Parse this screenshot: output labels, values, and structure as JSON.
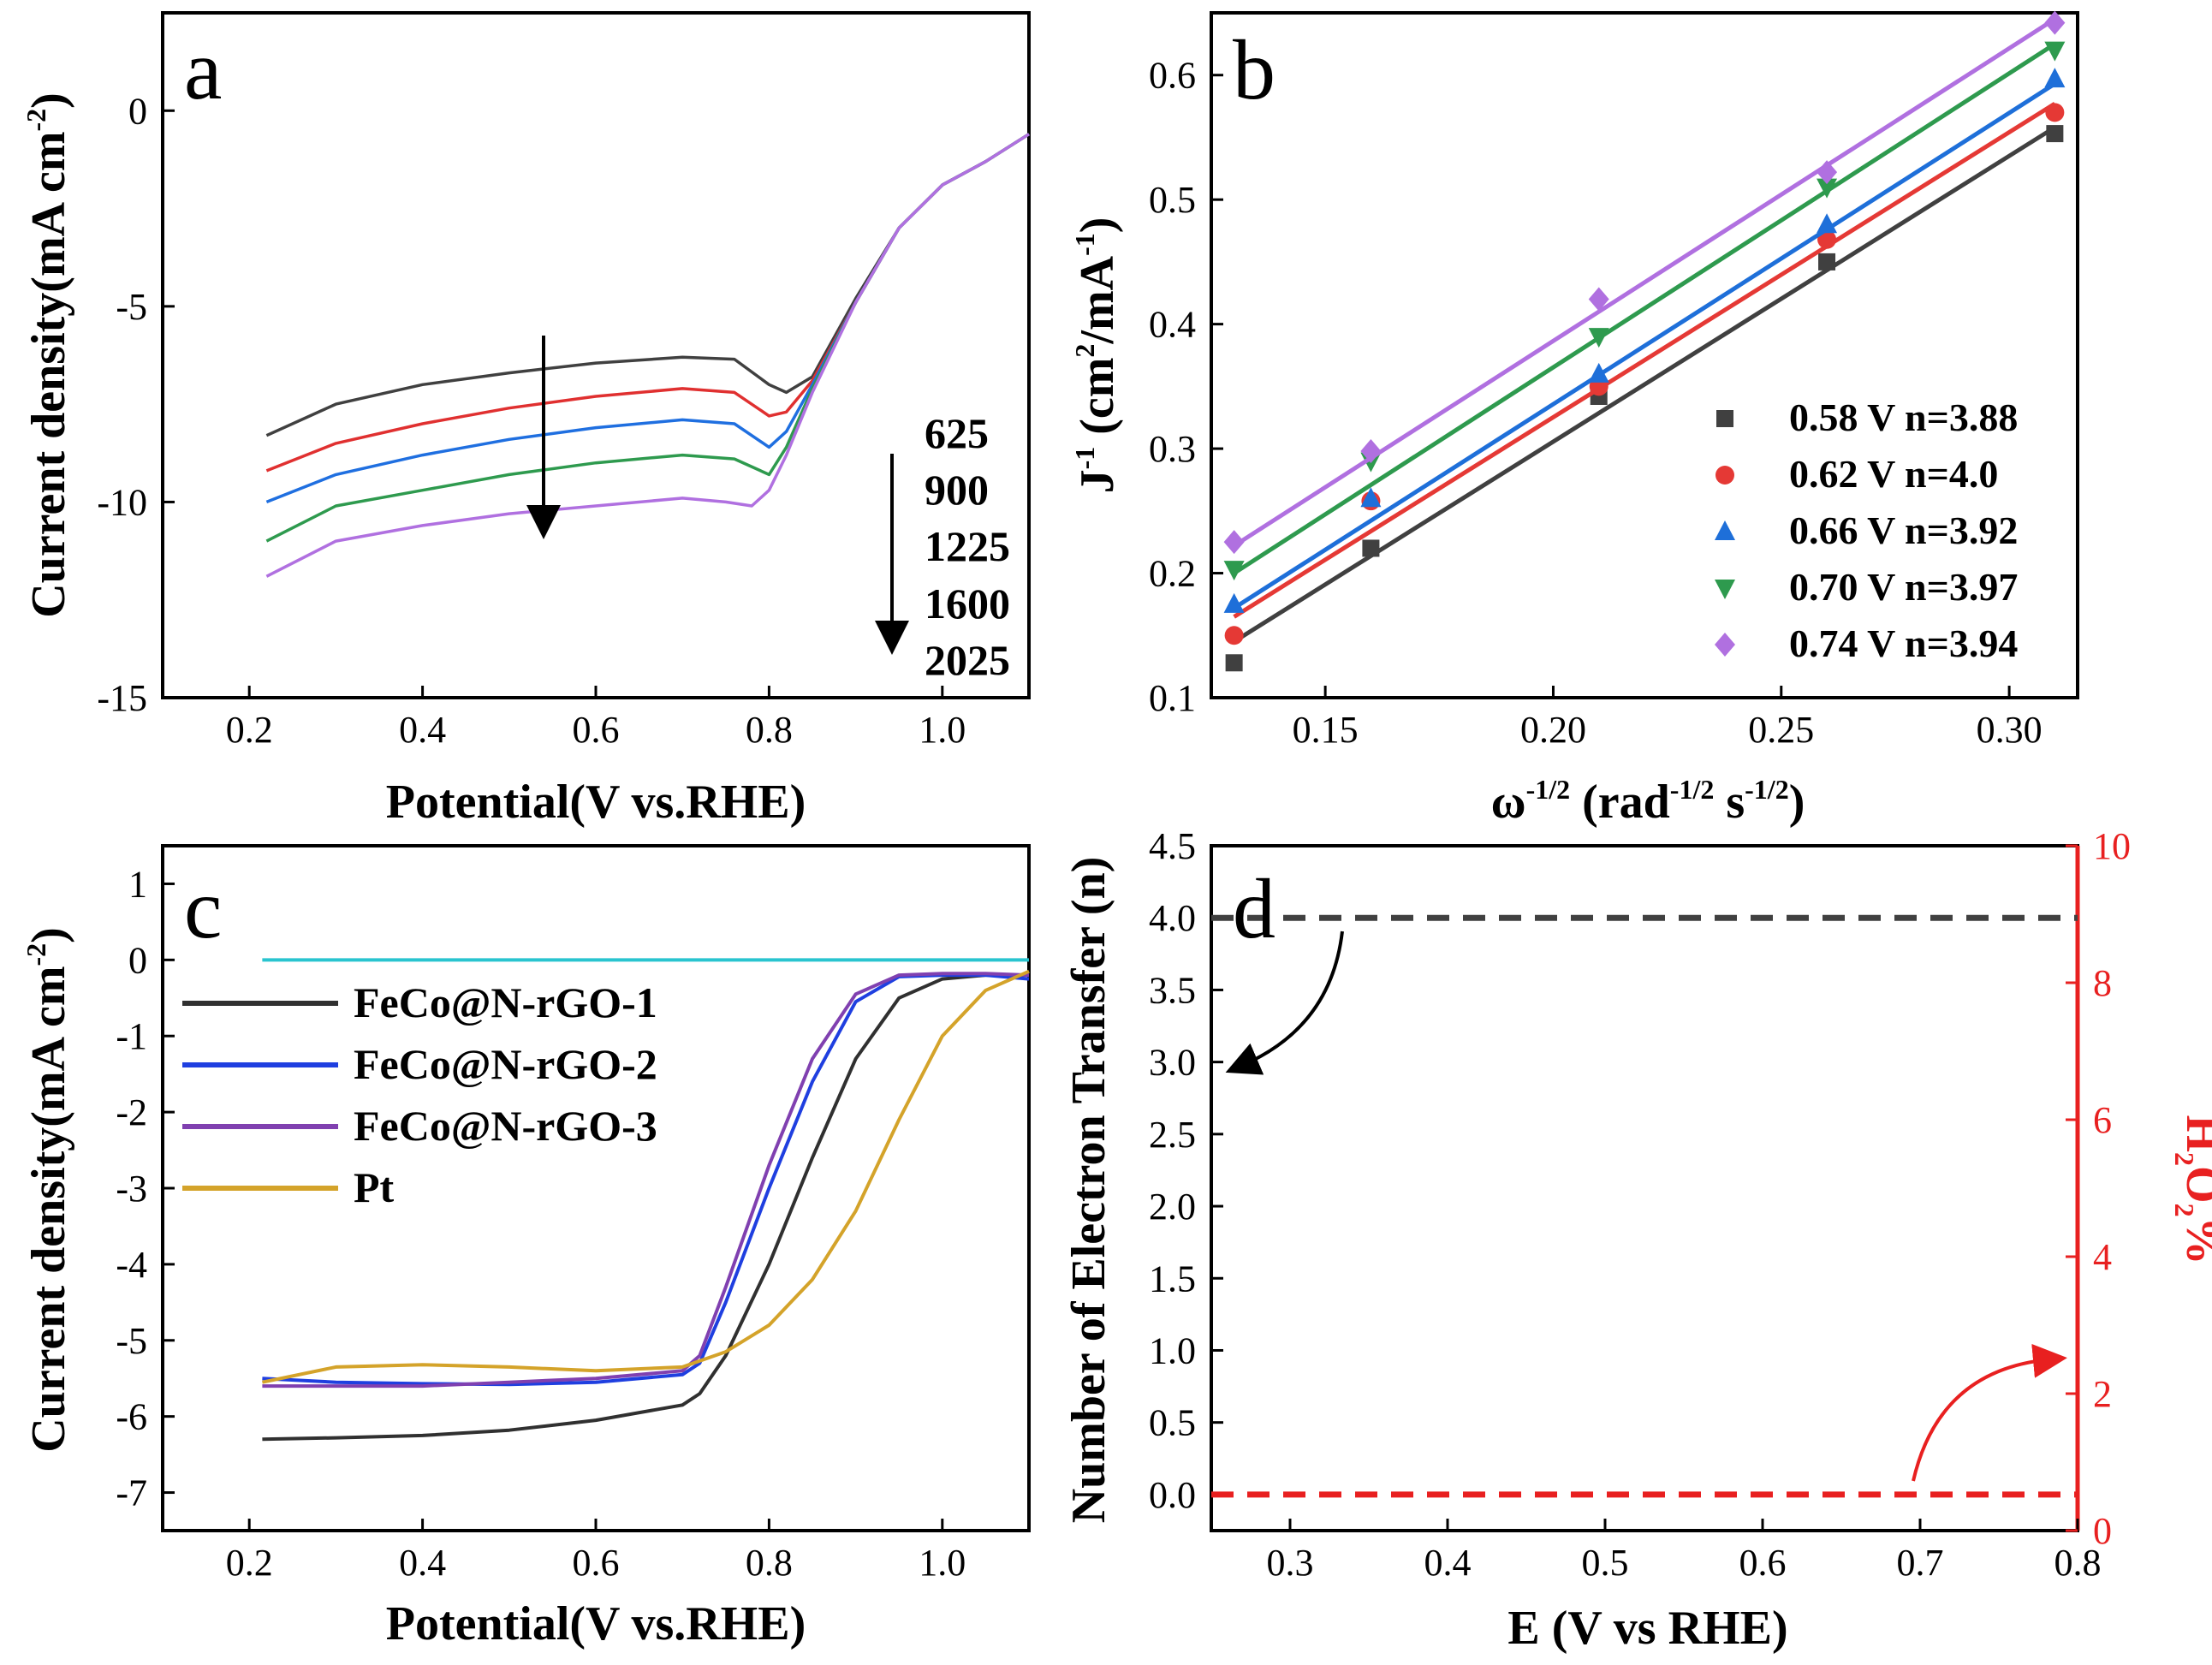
{
  "chart_data": [
    {
      "panel": "a",
      "type": "line",
      "xlabel": "Potential(V vs.RHE)",
      "ylabel": "Current density(mA cm",
      "ylabel_sup": "-2",
      "ylabel_close": ")",
      "xlim": [
        0.1,
        1.1
      ],
      "ylim": [
        -15,
        2.5
      ],
      "xticks": [
        "0.2",
        "0.4",
        "0.6",
        "0.8",
        "1.0"
      ],
      "yticks": [
        "0",
        "-5",
        "-10",
        "-15"
      ],
      "series": [
        {
          "name": "625",
          "color": "#404040",
          "x": [
            0.22,
            0.3,
            0.4,
            0.5,
            0.6,
            0.7,
            0.76,
            0.8,
            0.82,
            0.85,
            0.9,
            0.95,
            1.0,
            1.05,
            1.1
          ],
          "y": [
            -8.3,
            -7.5,
            -7.0,
            -6.7,
            -6.45,
            -6.3,
            -6.35,
            -7.0,
            -7.2,
            -6.8,
            -4.8,
            -3.0,
            -1.9,
            -1.3,
            -0.6
          ]
        },
        {
          "name": "900",
          "color": "#e03030",
          "x": [
            0.22,
            0.3,
            0.4,
            0.5,
            0.6,
            0.7,
            0.76,
            0.8,
            0.82,
            0.85,
            0.9,
            0.95,
            1.0,
            1.05,
            1.1
          ],
          "y": [
            -9.2,
            -8.5,
            -8.0,
            -7.6,
            -7.3,
            -7.1,
            -7.2,
            -7.8,
            -7.7,
            -6.9,
            -4.9,
            -3.0,
            -1.9,
            -1.3,
            -0.6
          ]
        },
        {
          "name": "1225",
          "color": "#1f6fe0",
          "x": [
            0.22,
            0.3,
            0.4,
            0.5,
            0.6,
            0.7,
            0.76,
            0.8,
            0.82,
            0.85,
            0.9,
            0.95,
            1.0,
            1.05,
            1.1
          ],
          "y": [
            -10.0,
            -9.3,
            -8.8,
            -8.4,
            -8.1,
            -7.9,
            -8.0,
            -8.6,
            -8.2,
            -7.0,
            -4.9,
            -3.0,
            -1.9,
            -1.3,
            -0.6
          ]
        },
        {
          "name": "1600",
          "color": "#2e9a4e",
          "x": [
            0.22,
            0.3,
            0.4,
            0.5,
            0.6,
            0.7,
            0.76,
            0.8,
            0.82,
            0.85,
            0.9,
            0.95,
            1.0,
            1.05,
            1.1
          ],
          "y": [
            -11.0,
            -10.1,
            -9.7,
            -9.3,
            -9.0,
            -8.8,
            -8.9,
            -9.3,
            -8.6,
            -7.1,
            -4.9,
            -3.0,
            -1.9,
            -1.3,
            -0.6
          ]
        },
        {
          "name": "2025",
          "color": "#b070e0",
          "x": [
            0.22,
            0.3,
            0.4,
            0.5,
            0.6,
            0.7,
            0.75,
            0.78,
            0.8,
            0.82,
            0.85,
            0.9,
            0.95,
            1.0,
            1.05,
            1.1
          ],
          "y": [
            -11.9,
            -11.0,
            -10.6,
            -10.3,
            -10.1,
            -9.9,
            -10.0,
            -10.1,
            -9.7,
            -8.8,
            -7.2,
            -4.9,
            -3.0,
            -1.9,
            -1.3,
            -0.6
          ]
        }
      ],
      "annotations": [
        "625",
        "900",
        "1225",
        "1600",
        "2025"
      ]
    },
    {
      "panel": "b",
      "type": "scatter",
      "xlabel_base": "ω",
      "xlabel_sup1": "-1/2",
      "xlabel_mid": " (rad",
      "xlabel_sup2": "-1/2",
      "xlabel_mid2": " s",
      "xlabel_sup3": "-1/2",
      "xlabel_close": ")",
      "ylabel_base": "J",
      "ylabel_sup1": "-1",
      "ylabel_mid": " (cm",
      "ylabel_sup2": "2",
      "ylabel_mid2": "/mA",
      "ylabel_sup3": "-1",
      "ylabel_close": ")",
      "xlim": [
        0.125,
        0.315
      ],
      "ylim": [
        0.1,
        0.65
      ],
      "xticks": [
        "0.15",
        "0.20",
        "0.25",
        "0.30"
      ],
      "yticks": [
        "0.1",
        "0.2",
        "0.3",
        "0.4",
        "0.5",
        "0.6"
      ],
      "x": [
        0.13,
        0.16,
        0.21,
        0.26,
        0.31
      ],
      "series": [
        {
          "name": "0.58 V  n=3.88",
          "color": "#404040",
          "marker": "square",
          "values": [
            0.128,
            0.22,
            0.342,
            0.45,
            0.553
          ],
          "fit": [
            0.145,
            0.558
          ]
        },
        {
          "name": "0.62 V  n=4.0",
          "color": "#e53935",
          "marker": "circle",
          "values": [
            0.15,
            0.258,
            0.35,
            0.468,
            0.57
          ],
          "fit": [
            0.165,
            0.577
          ]
        },
        {
          "name": "0.66 V  n=3.92",
          "color": "#1e6fd9",
          "marker": "triangle-up",
          "values": [
            0.175,
            0.26,
            0.36,
            0.48,
            0.597
          ],
          "fit": [
            0.172,
            0.593
          ]
        },
        {
          "name": "0.70 V  n=3.97",
          "color": "#2e9a4e",
          "marker": "triangle-down",
          "values": [
            0.203,
            0.29,
            0.39,
            0.51,
            0.62
          ],
          "fit": [
            0.2,
            0.625
          ]
        },
        {
          "name": "0.74 V  n=3.94",
          "color": "#b070e0",
          "marker": "diamond",
          "values": [
            0.225,
            0.298,
            0.42,
            0.522,
            0.642
          ],
          "fit": [
            0.222,
            0.645
          ]
        }
      ]
    },
    {
      "panel": "c",
      "type": "line",
      "xlabel": "Potential(V vs.RHE)",
      "ylabel": "Current density(mA cm",
      "ylabel_sup": "-2",
      "ylabel_close": ")",
      "xlim": [
        0.1,
        1.1
      ],
      "ylim": [
        -7.5,
        1.5
      ],
      "xticks": [
        "0.2",
        "0.4",
        "0.6",
        "0.8",
        "1.0"
      ],
      "yticks": [
        "1",
        "0",
        "-1",
        "-2",
        "-3",
        "-4",
        "-5",
        "-6",
        "-7"
      ],
      "baseline": {
        "color": "#29c4cf",
        "y": 0,
        "x": [
          0.215,
          1.1
        ]
      },
      "series": [
        {
          "name": "FeCo@N-rGO-1",
          "color": "#303030",
          "x": [
            0.215,
            0.3,
            0.4,
            0.5,
            0.6,
            0.7,
            0.72,
            0.75,
            0.8,
            0.85,
            0.9,
            0.95,
            1.0,
            1.05,
            1.1
          ],
          "y": [
            -6.3,
            -6.28,
            -6.25,
            -6.18,
            -6.05,
            -5.85,
            -5.7,
            -5.2,
            -4.0,
            -2.6,
            -1.3,
            -0.5,
            -0.25,
            -0.2,
            -0.2
          ]
        },
        {
          "name": "FeCo@N-rGO-2",
          "color": "#1f3fe0",
          "x": [
            0.215,
            0.3,
            0.4,
            0.5,
            0.6,
            0.7,
            0.72,
            0.75,
            0.8,
            0.85,
            0.9,
            0.95,
            1.0,
            1.05,
            1.1
          ],
          "y": [
            -5.5,
            -5.55,
            -5.57,
            -5.58,
            -5.55,
            -5.45,
            -5.3,
            -4.5,
            -3.0,
            -1.6,
            -0.55,
            -0.22,
            -0.2,
            -0.2,
            -0.25
          ]
        },
        {
          "name": "FeCo@N-rGO-3",
          "color": "#8040b0",
          "x": [
            0.215,
            0.3,
            0.4,
            0.5,
            0.6,
            0.7,
            0.72,
            0.75,
            0.8,
            0.85,
            0.9,
            0.95,
            1.0,
            1.05,
            1.1
          ],
          "y": [
            -5.6,
            -5.6,
            -5.6,
            -5.55,
            -5.5,
            -5.4,
            -5.2,
            -4.3,
            -2.7,
            -1.3,
            -0.45,
            -0.2,
            -0.18,
            -0.18,
            -0.2
          ]
        },
        {
          "name": "Pt",
          "color": "#d4a32a",
          "x": [
            0.215,
            0.3,
            0.4,
            0.5,
            0.6,
            0.7,
            0.75,
            0.8,
            0.85,
            0.9,
            0.95,
            1.0,
            1.05,
            1.1
          ],
          "y": [
            -5.55,
            -5.35,
            -5.32,
            -5.35,
            -5.4,
            -5.35,
            -5.15,
            -4.8,
            -4.2,
            -3.3,
            -2.1,
            -1.0,
            -0.4,
            -0.15
          ]
        }
      ]
    },
    {
      "panel": "d",
      "type": "line",
      "xlabel": "E (V vs RHE)",
      "ylabel": "Number of Electron Transfer (n)",
      "ylabel_right_pre": "H",
      "ylabel_right_sub1": "2",
      "ylabel_right_mid": "O",
      "ylabel_right_sub2": "2",
      "ylabel_right_post": "%",
      "xlim": [
        0.25,
        0.8
      ],
      "ylim_left": [
        -0.25,
        4.5
      ],
      "ylim_right": [
        0,
        10
      ],
      "xticks": [
        "0.3",
        "0.4",
        "0.5",
        "0.6",
        "0.7",
        "0.8"
      ],
      "yticks_left": [
        "0.0",
        "0.5",
        "1.0",
        "1.5",
        "2.0",
        "2.5",
        "3.0",
        "3.5",
        "4.0",
        "4.5"
      ],
      "yticks_right": [
        "0",
        "2",
        "4",
        "6",
        "8",
        "10"
      ],
      "right_axis_color": "#e82020",
      "series": [
        {
          "name": "n",
          "color": "#404040",
          "axis": "left",
          "style": "dashed",
          "x": [
            0.25,
            0.8
          ],
          "y": [
            4.0,
            4.0
          ]
        },
        {
          "name": "H2O2%",
          "color": "#e82020",
          "axis": "left",
          "style": "dashed",
          "x": [
            0.25,
            0.8
          ],
          "y": [
            0.0,
            0.0
          ]
        }
      ]
    }
  ],
  "panel_labels": {
    "a": "a",
    "b": "b",
    "c": "c",
    "d": "d"
  }
}
